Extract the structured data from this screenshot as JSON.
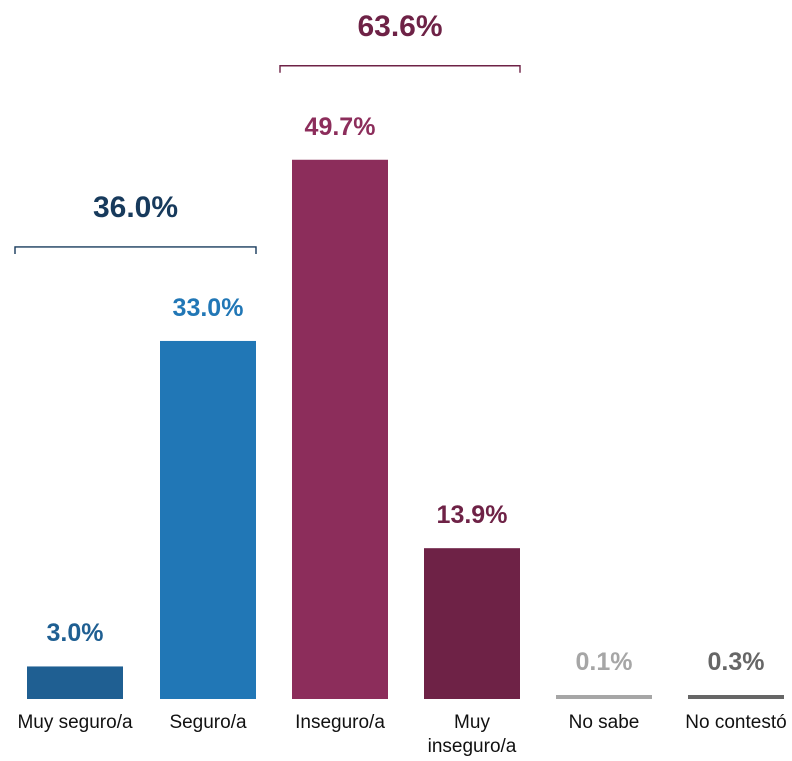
{
  "chart_data": {
    "type": "bar",
    "categories": [
      "Muy seguro/a",
      "Seguro/a",
      "Inseguro/a",
      "Muy inseguro/a",
      "No sabe",
      "No contestó"
    ],
    "values": [
      3.0,
      33.0,
      49.7,
      13.9,
      0.1,
      0.3
    ],
    "value_labels": [
      "3.0%",
      "33.0%",
      "49.7%",
      "13.9%",
      "0.1%",
      "0.3%"
    ],
    "colors": [
      "#1f5f92",
      "#2177b6",
      "#8c2d5b",
      "#6e2246",
      "#a6a6a6",
      "#666666"
    ],
    "label_colors": [
      "#1f5f92",
      "#2177b6",
      "#8c2d5b",
      "#6e2246",
      "#a6a6a6",
      "#666666"
    ],
    "groups": [
      {
        "label": "36.0%",
        "from": 0,
        "to": 1,
        "color": "#173a5c"
      },
      {
        "label": "63.6%",
        "from": 2,
        "to": 3,
        "color": "#6e2246"
      }
    ],
    "title": "",
    "xlabel": "",
    "ylabel": "",
    "ylim": [
      0,
      50
    ],
    "grid": false,
    "legend": "none"
  }
}
